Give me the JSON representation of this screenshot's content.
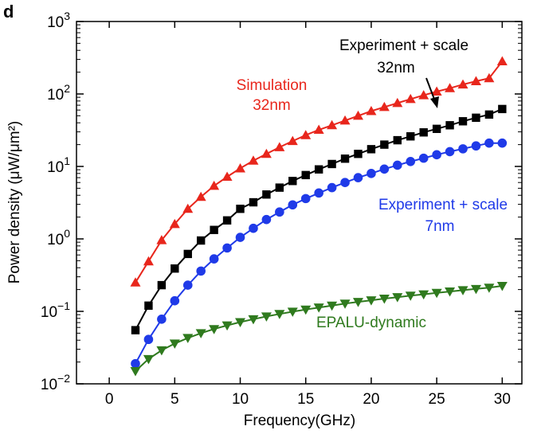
{
  "panel_label": "d",
  "chart_data": {
    "type": "line",
    "title": "",
    "xlabel": "Frequency(GHz)",
    "ylabel": "Power density (μW/μm²)",
    "xlim": [
      -2.5,
      31.5
    ],
    "ylim": [
      0.01,
      1000
    ],
    "yscale": "log",
    "grid": false,
    "x_ticks": [
      0,
      5,
      10,
      15,
      20,
      25,
      30
    ],
    "x_tick_labels": [
      "0",
      "5",
      "10",
      "15",
      "20",
      "25",
      "30"
    ],
    "y_ticks": [
      0.01,
      0.1,
      1,
      10,
      100,
      1000
    ],
    "y_tick_labels": [
      {
        "base": "10",
        "exp": "−2"
      },
      {
        "base": "10",
        "exp": "−1"
      },
      {
        "base": "10",
        "exp": "0"
      },
      {
        "base": "10",
        "exp": "1"
      },
      {
        "base": "10",
        "exp": "2"
      },
      {
        "base": "10",
        "exp": "3"
      }
    ],
    "x": [
      2,
      3,
      4,
      5,
      6,
      7,
      8,
      9,
      10,
      11,
      12,
      13,
      14,
      15,
      16,
      17,
      18,
      19,
      20,
      21,
      22,
      23,
      24,
      25,
      26,
      27,
      28,
      29,
      30
    ],
    "series": [
      {
        "color": "#e8261c",
        "marker": "triangle-up",
        "values": [
          0.25,
          0.49,
          0.96,
          1.6,
          2.6,
          3.8,
          5.4,
          7.2,
          9.4,
          12,
          14.9,
          18.4,
          22.4,
          27,
          32,
          37,
          43,
          50,
          58,
          66,
          75,
          85,
          96,
          108,
          120,
          135,
          150,
          165,
          282
        ]
      },
      {
        "color": "#000000",
        "marker": "square",
        "values": [
          0.055,
          0.12,
          0.23,
          0.39,
          0.62,
          0.95,
          1.33,
          1.8,
          2.6,
          3.2,
          4.1,
          5.1,
          6.3,
          7.6,
          9.1,
          10.8,
          12.8,
          14.9,
          17.3,
          20,
          23,
          26,
          29.5,
          33,
          37,
          42,
          47,
          52,
          62
        ]
      },
      {
        "color": "#1f3ae8",
        "marker": "circle",
        "values": [
          0.019,
          0.041,
          0.078,
          0.14,
          0.23,
          0.36,
          0.53,
          0.75,
          1.05,
          1.4,
          1.85,
          2.35,
          2.95,
          3.6,
          4.3,
          5.1,
          6,
          7,
          8,
          9.2,
          10.4,
          11.7,
          13,
          14.5,
          16,
          17.5,
          19.2,
          21,
          21
        ]
      },
      {
        "color": "#2f7a1e",
        "marker": "triangle-down",
        "values": [
          0.015,
          0.022,
          0.029,
          0.036,
          0.043,
          0.05,
          0.057,
          0.064,
          0.071,
          0.078,
          0.085,
          0.092,
          0.099,
          0.106,
          0.113,
          0.12,
          0.128,
          0.135,
          0.142,
          0.15,
          0.157,
          0.165,
          0.172,
          0.18,
          0.188,
          0.196,
          0.204,
          0.212,
          0.225
        ]
      }
    ],
    "annotations": [
      {
        "lines": [
          "Simulation",
          "32nm"
        ],
        "color": "#e8261c"
      },
      {
        "lines": [
          "Experiment + scale",
          "32nm"
        ],
        "color": "#000000"
      },
      {
        "lines": [
          "Experiment + scale",
          "7nm"
        ],
        "color": "#1f3ae8"
      },
      {
        "lines": [
          "EPALU-dynamic"
        ],
        "color": "#2f7a1e"
      }
    ]
  }
}
